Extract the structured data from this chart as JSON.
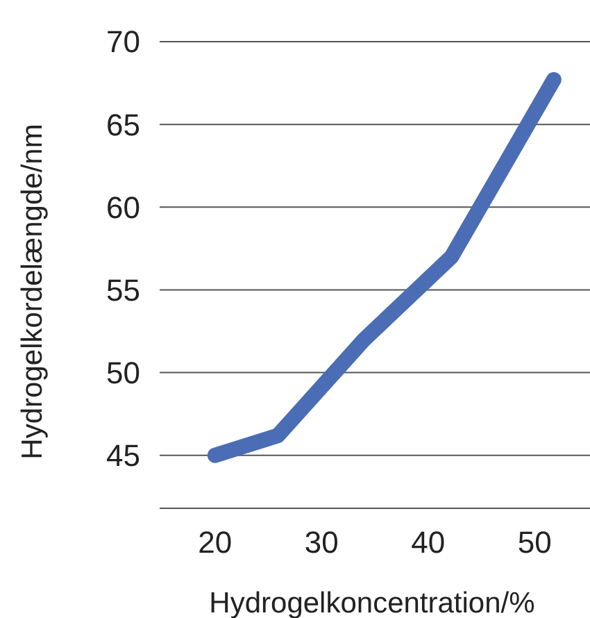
{
  "chart_data": {
    "type": "line",
    "xlabel": "Hydrogelkoncentration/%",
    "ylabel": "Hydrogelkordelængde/nm",
    "x": [
      20,
      25.9,
      34,
      42.2,
      51.8
    ],
    "series": [
      {
        "color": "#4a6db5",
        "values": [
          45,
          46.2,
          52,
          57,
          67.7
        ]
      }
    ],
    "xlim": [
      14.8,
      55.2
    ],
    "xticks": [
      20,
      30,
      40,
      50
    ],
    "ylim": [
      41.8,
      70
    ],
    "yticks": [
      45,
      50,
      55,
      60,
      65,
      70
    ],
    "grid": "y",
    "marker": "none",
    "line_style": "solid"
  }
}
